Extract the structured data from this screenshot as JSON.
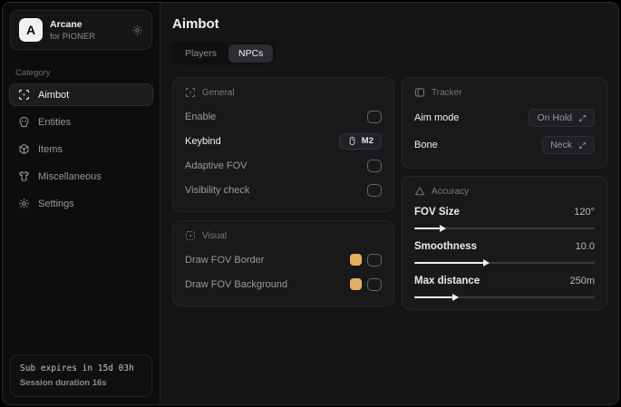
{
  "app": {
    "name": "Arcane",
    "subtitle": "for PIONER",
    "logo_letter": "A"
  },
  "sidebar": {
    "category_label": "Category",
    "items": [
      {
        "label": "Aimbot",
        "icon": "crosshair-icon",
        "active": true
      },
      {
        "label": "Entities",
        "icon": "skull-icon",
        "active": false
      },
      {
        "label": "Items",
        "icon": "box-icon",
        "active": false
      },
      {
        "label": "Miscellaneous",
        "icon": "shirt-icon",
        "active": false
      },
      {
        "label": "Settings",
        "icon": "gear-icon",
        "active": false
      }
    ],
    "footer": {
      "expiry": "Sub expires in 15d 03h",
      "session": "Session duration 16s"
    }
  },
  "main": {
    "title": "Aimbot",
    "tabs": [
      {
        "label": "Players",
        "active": false
      },
      {
        "label": "NPCs",
        "active": true
      }
    ],
    "general": {
      "title": "General",
      "rows": [
        {
          "label": "Enable",
          "control": "checkbox",
          "checked": false
        },
        {
          "label": "Keybind",
          "control": "keybind",
          "value": "M2"
        },
        {
          "label": "Adaptive FOV",
          "control": "checkbox",
          "checked": false
        },
        {
          "label": "Visibility check",
          "control": "checkbox",
          "checked": false
        }
      ]
    },
    "visual": {
      "title": "Visual",
      "rows": [
        {
          "label": "Draw FOV Border",
          "control": "color-checkbox",
          "color": "#e0b264",
          "checked": false
        },
        {
          "label": "Draw FOV Background",
          "control": "color-checkbox",
          "color": "#e0b264",
          "checked": false
        }
      ]
    },
    "tracker": {
      "title": "Tracker",
      "rows": [
        {
          "label": "Aim mode",
          "control": "select",
          "value": "On Hold"
        },
        {
          "label": "Bone",
          "control": "select",
          "value": "Neck"
        }
      ]
    },
    "accuracy": {
      "title": "Accuracy",
      "sliders": [
        {
          "label": "FOV Size",
          "value": "120°",
          "percent": 14
        },
        {
          "label": "Smoothness",
          "value": "10.0",
          "percent": 38
        },
        {
          "label": "Max distance",
          "value": "250m",
          "percent": 21
        }
      ]
    }
  },
  "colors": {
    "swatch_gold": "#e0b264"
  }
}
